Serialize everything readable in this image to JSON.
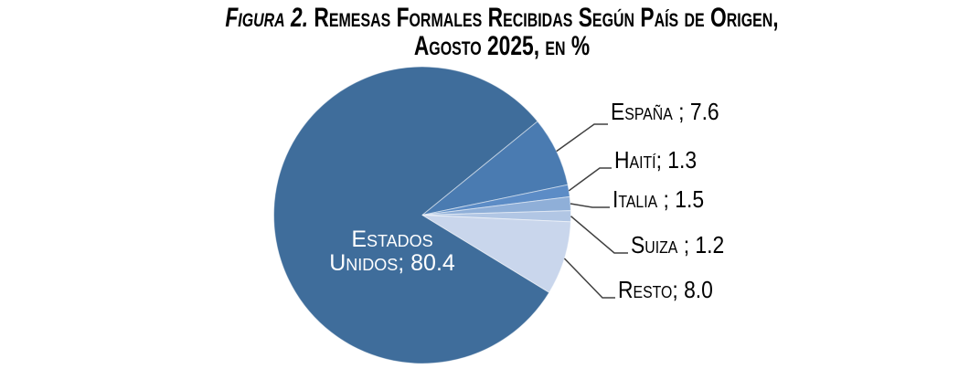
{
  "figure": {
    "title_prefix": "Figura 2.",
    "title_line1_rest": " Remesas Formales Recibidas Según País de Origen,",
    "title_line2": "Agosto 2025, en %"
  },
  "chart_data": {
    "type": "pie",
    "title": "Figura 2. Remesas formales recibidas según país de origen, agosto 2025, en %",
    "unit": "%",
    "direction": "clockwise",
    "start_angle_deg": -31.4,
    "legend_position": "none",
    "leader_line_color": "#404040",
    "inside_label_color": "#FFFFFF",
    "slices": [
      {
        "name": "Estados Unidos",
        "value": 80.4,
        "label": "Estados Unidos; 80.4",
        "color": "#3F6D9B",
        "label_placement": "inside"
      },
      {
        "name": "España",
        "value": 7.6,
        "label": "España ; 7.6",
        "color": "#4A7BB1",
        "label_placement": "outside"
      },
      {
        "name": "Haití",
        "value": 1.3,
        "label": "Haití; 1.3",
        "color": "#5C8CC6",
        "label_placement": "outside"
      },
      {
        "name": "Italia",
        "value": 1.5,
        "label": "Italia ; 1.5",
        "color": "#8FAFD8",
        "label_placement": "outside"
      },
      {
        "name": "Suiza",
        "value": 1.2,
        "label": "Suiza ; 1.2",
        "color": "#B1C6E4",
        "label_placement": "outside"
      },
      {
        "name": "Resto",
        "value": 8.0,
        "label": "Resto; 8.0",
        "color": "#C9D6EC",
        "label_placement": "outside"
      }
    ]
  }
}
